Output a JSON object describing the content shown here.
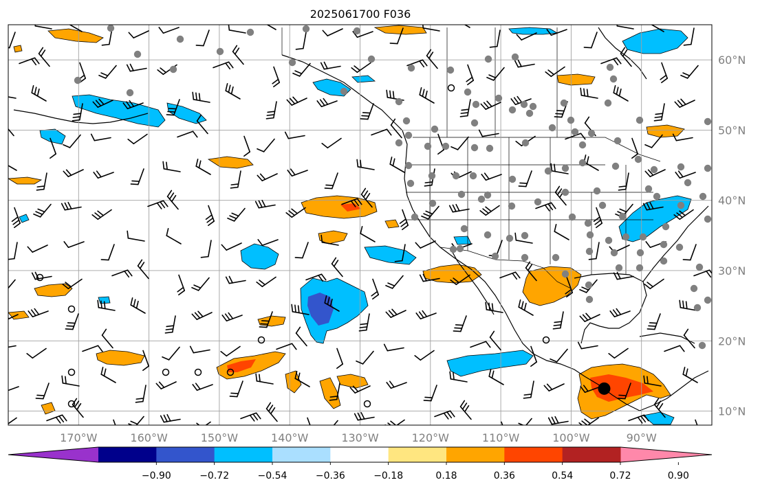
{
  "title": "2025061700 F036",
  "map": {
    "projection": "PlateCarree",
    "lon_range": [
      -180,
      -80
    ],
    "lat_range": [
      8,
      65
    ],
    "gridlines": true,
    "lon_labels": [
      {
        "lon": -170,
        "label": "170°W"
      },
      {
        "lon": -160,
        "label": "160°W"
      },
      {
        "lon": -150,
        "label": "150°W"
      },
      {
        "lon": -140,
        "label": "140°W"
      },
      {
        "lon": -130,
        "label": "130°W"
      },
      {
        "lon": -120,
        "label": "120°W"
      },
      {
        "lon": -110,
        "label": "110°W"
      },
      {
        "lon": -100,
        "label": "100°W"
      },
      {
        "lon": -90,
        "label": "90°W"
      }
    ],
    "lat_labels": [
      {
        "lat": 60,
        "label": "60°N"
      },
      {
        "lat": 50,
        "label": "50°N"
      },
      {
        "lat": 40,
        "label": "40°N"
      },
      {
        "lat": 30,
        "label": "30°N"
      },
      {
        "lat": 20,
        "label": "20°N"
      },
      {
        "lat": 10,
        "label": "10°N"
      }
    ],
    "marker": {
      "lon": -95.3,
      "lat": 13.2,
      "color": "#000000"
    }
  },
  "colorbar": {
    "extend": "both",
    "colors": [
      "#9932cc",
      "#00008b",
      "#3355cc",
      "#00bfff",
      "#aadfff",
      "#ffffff",
      "#ffe680",
      "#ffa500",
      "#ff4500",
      "#b22222",
      "#ff88aa"
    ],
    "tick_labels": [
      "−0.90",
      "−0.72",
      "−0.54",
      "−0.36",
      "−0.18",
      "0.18",
      "0.36",
      "0.54",
      "0.72",
      "0.90"
    ]
  },
  "legend_colors": {
    "neg_light": "#aadfff",
    "neg_mid": "#00bfff",
    "neg_strong": "#3355cc",
    "pos_light": "#ffe680",
    "pos_mid": "#ffa500",
    "pos_strong": "#ff4500",
    "station_dot": "#808080"
  }
}
